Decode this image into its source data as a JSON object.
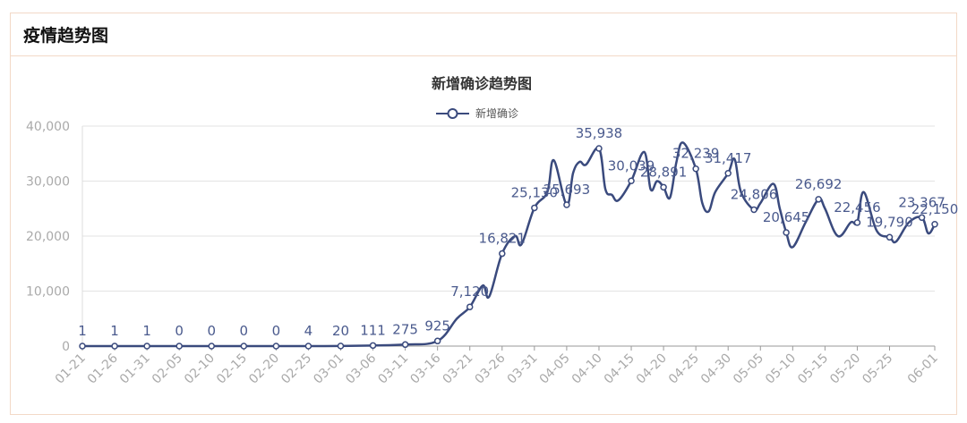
{
  "panel": {
    "title": "疫情趋势图"
  },
  "chart_data": {
    "type": "line",
    "title": "新增确诊趋势图",
    "legend": {
      "label": "新增确诊",
      "position": "top-center"
    },
    "ylim": [
      0,
      40000
    ],
    "yticks": [
      "0",
      "10,000",
      "20,000",
      "30,000",
      "40,000"
    ],
    "xticks": [
      "01-21",
      "01-26",
      "01-31",
      "02-05",
      "02-10",
      "02-15",
      "02-20",
      "02-25",
      "03-01",
      "03-06",
      "03-11",
      "03-16",
      "03-21",
      "03-26",
      "03-31",
      "04-05",
      "04-10",
      "04-15",
      "04-20",
      "04-25",
      "04-30",
      "05-05",
      "05-10",
      "05-15",
      "05-20",
      "05-25",
      "06-01"
    ],
    "grid": true,
    "color": "#3a4a7d",
    "series": [
      {
        "name": "新增确诊",
        "points": [
          {
            "x": "01-21",
            "y": 1,
            "label": "1"
          },
          {
            "x": "01-26",
            "y": 1,
            "label": "1"
          },
          {
            "x": "01-31",
            "y": 1,
            "label": "1"
          },
          {
            "x": "02-05",
            "y": 0,
            "label": "0"
          },
          {
            "x": "02-10",
            "y": 0,
            "label": "0"
          },
          {
            "x": "02-15",
            "y": 0,
            "label": "0"
          },
          {
            "x": "02-20",
            "y": 0,
            "label": "0"
          },
          {
            "x": "02-25",
            "y": 4,
            "label": "4"
          },
          {
            "x": "03-01",
            "y": 20,
            "label": "20"
          },
          {
            "x": "03-06",
            "y": 111,
            "label": "111"
          },
          {
            "x": "03-11",
            "y": 275,
            "label": "275"
          },
          {
            "x": "03-16",
            "y": 925,
            "label": "925"
          },
          {
            "x": "03-19",
            "y": 5000
          },
          {
            "x": "03-21",
            "y": 7120,
            "label": "7,120"
          },
          {
            "x": "03-23",
            "y": 11000
          },
          {
            "x": "03-24",
            "y": 9000
          },
          {
            "x": "03-26",
            "y": 16821,
            "label": "16,821"
          },
          {
            "x": "03-28",
            "y": 20000
          },
          {
            "x": "03-29",
            "y": 18500
          },
          {
            "x": "03-31",
            "y": 25130,
            "label": "25,130"
          },
          {
            "x": "04-02",
            "y": 28000
          },
          {
            "x": "04-03",
            "y": 33800
          },
          {
            "x": "04-05",
            "y": 25693,
            "label": "25,693"
          },
          {
            "x": "04-06",
            "y": 31500
          },
          {
            "x": "04-07",
            "y": 33500
          },
          {
            "x": "04-08",
            "y": 33000
          },
          {
            "x": "04-10",
            "y": 35938,
            "label": "35,938"
          },
          {
            "x": "04-11",
            "y": 28500
          },
          {
            "x": "04-12",
            "y": 27500
          },
          {
            "x": "04-13",
            "y": 26500
          },
          {
            "x": "04-15",
            "y": 30039,
            "label": "30,039"
          },
          {
            "x": "04-17",
            "y": 35300
          },
          {
            "x": "04-18",
            "y": 28500
          },
          {
            "x": "04-19",
            "y": 30000
          },
          {
            "x": "04-20",
            "y": 28891,
            "label": "28,891"
          },
          {
            "x": "04-21",
            "y": 27000
          },
          {
            "x": "04-22",
            "y": 33500
          },
          {
            "x": "04-23",
            "y": 37000
          },
          {
            "x": "04-25",
            "y": 32239,
            "label": "32,239"
          },
          {
            "x": "04-26",
            "y": 26000
          },
          {
            "x": "04-27",
            "y": 24500
          },
          {
            "x": "04-28",
            "y": 28000
          },
          {
            "x": "04-30",
            "y": 31417,
            "label": "31,417"
          },
          {
            "x": "05-01",
            "y": 34000
          },
          {
            "x": "05-02",
            "y": 28000
          },
          {
            "x": "05-04",
            "y": 24806,
            "label": "24,806"
          },
          {
            "x": "05-05",
            "y": 26000
          },
          {
            "x": "05-07",
            "y": 29500
          },
          {
            "x": "05-08",
            "y": 25000
          },
          {
            "x": "05-09",
            "y": 20645,
            "label": "20,645"
          },
          {
            "x": "05-10",
            "y": 18000
          },
          {
            "x": "05-12",
            "y": 22500
          },
          {
            "x": "05-14",
            "y": 26692,
            "label": "26,692"
          },
          {
            "x": "05-15",
            "y": 25000
          },
          {
            "x": "05-17",
            "y": 20000
          },
          {
            "x": "05-19",
            "y": 22500
          },
          {
            "x": "05-20",
            "y": 22456,
            "label": "22,456"
          },
          {
            "x": "05-21",
            "y": 28000
          },
          {
            "x": "05-23",
            "y": 21000
          },
          {
            "x": "05-25",
            "y": 19790,
            "label": "19,790"
          },
          {
            "x": "05-26",
            "y": 19000
          },
          {
            "x": "05-28",
            "y": 22500
          },
          {
            "x": "05-30",
            "y": 23367,
            "label": "23,367"
          },
          {
            "x": "05-31",
            "y": 20500
          },
          {
            "x": "06-01",
            "y": 22150,
            "label": "22,150"
          }
        ]
      }
    ]
  }
}
